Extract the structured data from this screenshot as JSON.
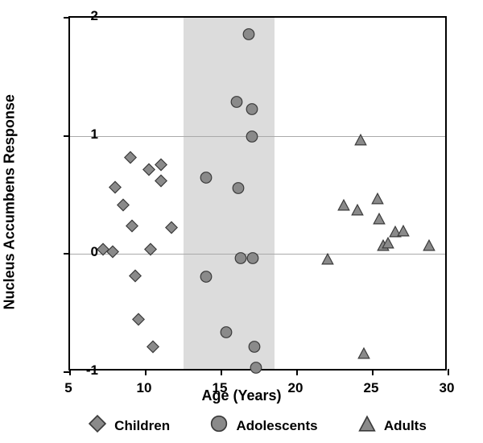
{
  "chart": {
    "type": "scatter",
    "xlabel": "Age (Years)",
    "ylabel": "Nucleus Accumbens Response",
    "xlim": [
      5,
      30
    ],
    "ylim": [
      -1,
      2
    ],
    "xticks": [
      5,
      10,
      15,
      20,
      25,
      30
    ],
    "yticks": [
      -1,
      0,
      1,
      2
    ],
    "gridlines_y": [
      0,
      1
    ],
    "background_color": "#ffffff",
    "border_color": "#000000",
    "grid_color": "#aaaaaa",
    "shaded_region": {
      "xmin": 12.5,
      "xmax": 18.5,
      "color": "#dcdcdc"
    },
    "label_fontsize": 18,
    "tick_fontsize": 17,
    "marker_size": 16,
    "marker_fill": "#8a8a8a",
    "marker_stroke": "#3a3a3a",
    "marker_stroke_width": 1.5,
    "series": [
      {
        "name": "Children",
        "marker": "diamond",
        "data": [
          {
            "x": 7.2,
            "y": 0.02
          },
          {
            "x": 8.0,
            "y": 0.55
          },
          {
            "x": 7.8,
            "y": 0.0
          },
          {
            "x": 8.5,
            "y": 0.4
          },
          {
            "x": 9.0,
            "y": 0.8
          },
          {
            "x": 9.1,
            "y": 0.22
          },
          {
            "x": 9.3,
            "y": -0.2
          },
          {
            "x": 9.5,
            "y": -0.57
          },
          {
            "x": 10.2,
            "y": 0.7
          },
          {
            "x": 10.3,
            "y": 0.02
          },
          {
            "x": 10.5,
            "y": -0.8
          },
          {
            "x": 11.0,
            "y": 0.74
          },
          {
            "x": 11.0,
            "y": 0.6
          },
          {
            "x": 11.7,
            "y": 0.21
          }
        ]
      },
      {
        "name": "Adolescents",
        "marker": "circle",
        "data": [
          {
            "x": 14.0,
            "y": 0.63
          },
          {
            "x": 14.0,
            "y": -0.21
          },
          {
            "x": 15.3,
            "y": -0.68
          },
          {
            "x": 16.0,
            "y": 1.27
          },
          {
            "x": 16.1,
            "y": 0.54
          },
          {
            "x": 16.3,
            "y": -0.05
          },
          {
            "x": 16.8,
            "y": 1.84
          },
          {
            "x": 17.0,
            "y": 1.21
          },
          {
            "x": 17.0,
            "y": 0.98
          },
          {
            "x": 17.1,
            "y": -0.05
          },
          {
            "x": 17.2,
            "y": -0.8
          },
          {
            "x": 17.3,
            "y": -0.98
          }
        ]
      },
      {
        "name": "Adults",
        "marker": "triangle",
        "data": [
          {
            "x": 22.0,
            "y": -0.06
          },
          {
            "x": 23.1,
            "y": 0.4
          },
          {
            "x": 24.2,
            "y": 0.95
          },
          {
            "x": 24.0,
            "y": 0.36
          },
          {
            "x": 24.4,
            "y": -0.86
          },
          {
            "x": 25.3,
            "y": 0.45
          },
          {
            "x": 25.4,
            "y": 0.28
          },
          {
            "x": 25.7,
            "y": 0.06
          },
          {
            "x": 26.0,
            "y": 0.08
          },
          {
            "x": 26.5,
            "y": 0.17
          },
          {
            "x": 27.0,
            "y": 0.18
          },
          {
            "x": 28.7,
            "y": 0.06
          }
        ]
      }
    ],
    "legend": {
      "items": [
        {
          "label": "Children",
          "marker": "diamond"
        },
        {
          "label": "Adolescents",
          "marker": "circle"
        },
        {
          "label": "Adults",
          "marker": "triangle"
        }
      ],
      "fontsize": 17,
      "marker_size": 22
    }
  }
}
